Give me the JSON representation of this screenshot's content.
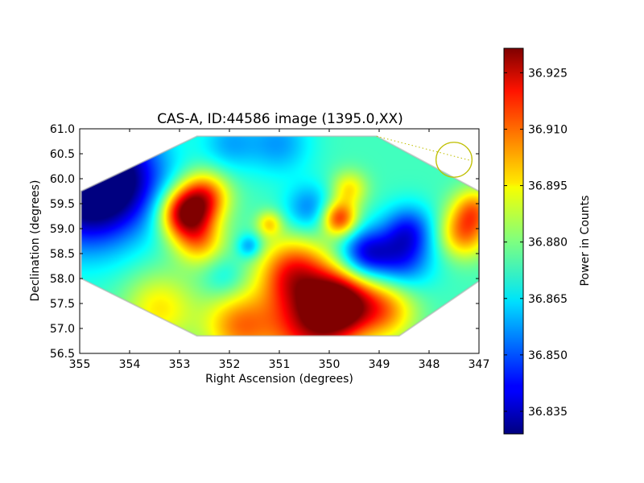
{
  "chart_data": {
    "type": "heatmap",
    "title": "CAS-A, ID:44586 image (1395.0,XX)",
    "xlabel": "Right Ascension (degrees)",
    "ylabel": "Declination (degrees)",
    "xlim": [
      355,
      347
    ],
    "ylim": [
      56.5,
      61.0
    ],
    "x_ticks": [
      "355",
      "354",
      "353",
      "352",
      "351",
      "350",
      "349",
      "348",
      "347"
    ],
    "y_ticks": [
      "61.0",
      "60.5",
      "60.0",
      "59.5",
      "59.0",
      "58.5",
      "58.0",
      "57.5",
      "57.0",
      "56.5"
    ],
    "grid": false,
    "colormap": "jet",
    "colorbar": {
      "label": "Power in Counts",
      "range": [
        36.829,
        36.9315
      ],
      "ticks": [
        "36.925",
        "36.910",
        "36.895",
        "36.880",
        "36.865",
        "36.850",
        "36.835"
      ]
    },
    "field_of_view": {
      "shape": "octagon",
      "vertices": [
        [
          354.97,
          59.75
        ],
        [
          352.65,
          60.85
        ],
        [
          349.05,
          60.85
        ],
        [
          347.0,
          59.75
        ],
        [
          347.0,
          57.95
        ],
        [
          348.6,
          56.85
        ],
        [
          352.65,
          56.85
        ],
        [
          354.97,
          58.0
        ]
      ]
    },
    "beam_marker": {
      "center": [
        347.5,
        60.38
      ],
      "radius_x_deg": 0.36,
      "radius_y_deg": 0.35,
      "color": "#bfbf00"
    },
    "intensity_features": [
      {
        "ra": 354.9,
        "dec": 59.7,
        "value": 36.829,
        "sigma": 0.8
      },
      {
        "ra": 354.2,
        "dec": 60.1,
        "value": 36.845,
        "sigma": 0.7
      },
      {
        "ra": 352.9,
        "dec": 59.3,
        "value": 36.925,
        "sigma": 0.35
      },
      {
        "ra": 352.5,
        "dec": 59.65,
        "value": 36.91,
        "sigma": 0.35
      },
      {
        "ra": 352.6,
        "dec": 58.75,
        "value": 36.9,
        "sigma": 0.35
      },
      {
        "ra": 352.1,
        "dec": 58.0,
        "value": 36.865,
        "sigma": 0.3
      },
      {
        "ra": 351.2,
        "dec": 59.1,
        "value": 36.895,
        "sigma": 0.18
      },
      {
        "ra": 351.6,
        "dec": 58.65,
        "value": 36.855,
        "sigma": 0.17
      },
      {
        "ra": 351.0,
        "dec": 60.7,
        "value": 36.858,
        "sigma": 0.45
      },
      {
        "ra": 352.0,
        "dec": 60.7,
        "value": 36.86,
        "sigma": 0.4
      },
      {
        "ra": 350.4,
        "dec": 59.4,
        "value": 36.855,
        "sigma": 0.35
      },
      {
        "ra": 349.8,
        "dec": 59.2,
        "value": 36.915,
        "sigma": 0.25
      },
      {
        "ra": 349.6,
        "dec": 59.8,
        "value": 36.895,
        "sigma": 0.25
      },
      {
        "ra": 349.3,
        "dec": 58.5,
        "value": 36.845,
        "sigma": 0.35
      },
      {
        "ra": 348.6,
        "dec": 58.4,
        "value": 36.845,
        "sigma": 0.45
      },
      {
        "ra": 348.4,
        "dec": 59.0,
        "value": 36.852,
        "sigma": 0.35
      },
      {
        "ra": 350.7,
        "dec": 58.1,
        "value": 36.915,
        "sigma": 0.5
      },
      {
        "ra": 349.8,
        "dec": 57.5,
        "value": 36.93,
        "sigma": 0.45
      },
      {
        "ra": 350.4,
        "dec": 57.0,
        "value": 36.915,
        "sigma": 0.6
      },
      {
        "ra": 351.8,
        "dec": 57.05,
        "value": 36.905,
        "sigma": 0.5
      },
      {
        "ra": 353.4,
        "dec": 57.4,
        "value": 36.895,
        "sigma": 0.5
      },
      {
        "ra": 348.9,
        "dec": 57.4,
        "value": 36.905,
        "sigma": 0.45
      },
      {
        "ra": 347.3,
        "dec": 58.9,
        "value": 36.905,
        "sigma": 0.35
      },
      {
        "ra": 347.1,
        "dec": 59.4,
        "value": 36.9,
        "sigma": 0.3
      }
    ],
    "background_value": 36.874
  }
}
